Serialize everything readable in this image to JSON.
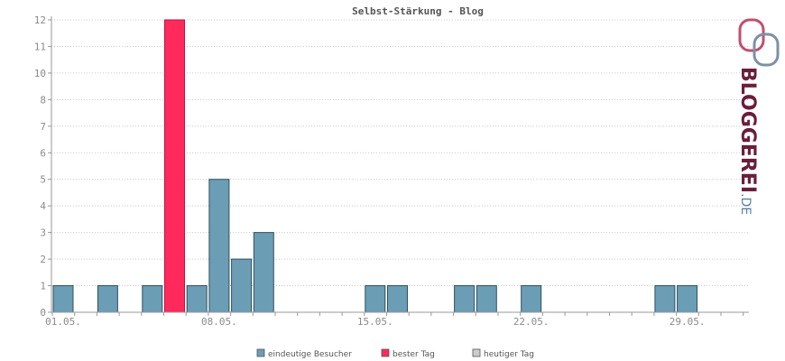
{
  "chart_data": {
    "type": "bar",
    "title": "Selbst-Stärkung - Blog",
    "ylim": [
      0,
      12
    ],
    "y_ticks": [
      "0",
      "1",
      "2",
      "3",
      "4",
      "5",
      "6",
      "7",
      "8",
      "10",
      "11",
      "12"
    ],
    "x_tick_labels": [
      "01.05.",
      "08.05.",
      "15.05.",
      "22.05.",
      "29.05."
    ],
    "categories": [
      "01.05.",
      "02.05.",
      "03.05.",
      "04.05.",
      "05.05.",
      "06.05.",
      "07.05.",
      "08.05.",
      "09.05.",
      "10.05.",
      "11.05.",
      "12.05.",
      "13.05.",
      "14.05.",
      "15.05.",
      "16.05.",
      "17.05.",
      "18.05.",
      "19.05.",
      "20.05.",
      "21.05.",
      "22.05.",
      "23.05.",
      "24.05.",
      "25.05.",
      "26.05.",
      "27.05.",
      "28.05.",
      "29.05.",
      "30.05.",
      "31.05."
    ],
    "series": [
      {
        "name": "eindeutige Besucher",
        "color": "#6b9db5",
        "values": [
          1,
          0,
          1,
          0,
          1,
          12,
          1,
          5,
          2,
          3,
          0,
          0,
          0,
          0,
          1,
          1,
          0,
          0,
          1,
          1,
          0,
          1,
          0,
          0,
          0,
          0,
          0,
          1,
          1,
          0,
          0
        ]
      }
    ],
    "best_day_index": 5,
    "best_day_color": "#ff2a5b",
    "grid": true,
    "legend_position": "bottom"
  },
  "legend": [
    {
      "label": "eindeutige Besucher",
      "color": "#6b9db5"
    },
    {
      "label": "bester Tag",
      "color": "#ff2a5b"
    },
    {
      "label": "heutiger Tag",
      "color": "#cccccc"
    }
  ],
  "logo": {
    "text_main": "BLOGGEREI",
    "text_suffix": ".DE",
    "color_main": "#6b1e3a",
    "color_suffix": "#5a7fa6"
  }
}
